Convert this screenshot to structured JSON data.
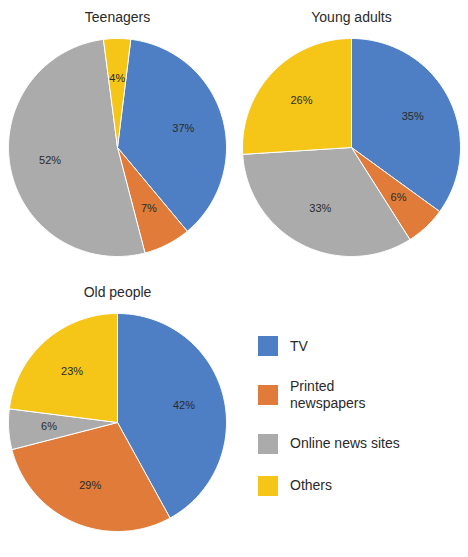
{
  "chart_data": [
    {
      "type": "pie",
      "title": "Teenagers",
      "categories": [
        "TV",
        "Printed\nnewspapers",
        "Online news sites",
        "Others"
      ],
      "values": [
        37,
        7,
        52,
        4
      ],
      "value_labels": [
        "37%",
        "7%",
        "52%",
        "4%"
      ],
      "colors": [
        "#4E7EC4",
        "#E07B39",
        "#ABABAB",
        "#F5C518"
      ],
      "data_labels": true,
      "legend": "lower right"
    },
    {
      "type": "pie",
      "title": "Young adults",
      "categories": [
        "TV",
        "Printed\nnewspapers",
        "Online news sites",
        "Others"
      ],
      "values": [
        35,
        6,
        33,
        26
      ],
      "value_labels": [
        "35%",
        "6%",
        "33%",
        "26%"
      ],
      "colors": [
        "#4E7EC4",
        "#E07B39",
        "#ABABAB",
        "#F5C518"
      ],
      "data_labels": true,
      "legend": "lower right"
    },
    {
      "type": "pie",
      "title": "Old people",
      "categories": [
        "TV",
        "Printed\nnewspapers",
        "Online news sites",
        "Others"
      ],
      "values": [
        42,
        29,
        6,
        23
      ],
      "value_labels": [
        "42%",
        "29%",
        "6%",
        "23%"
      ],
      "colors": [
        "#4E7EC4",
        "#E07B39",
        "#ABABAB",
        "#F5C518"
      ],
      "data_labels": true,
      "legend": "lower right"
    }
  ]
}
